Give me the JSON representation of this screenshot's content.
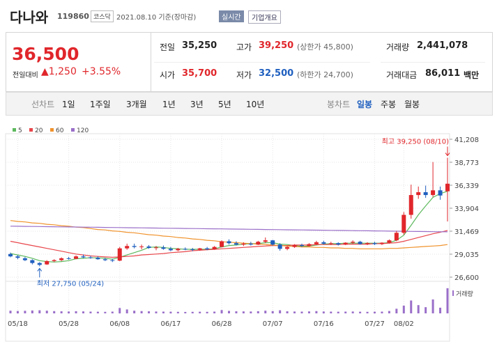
{
  "header": {
    "name": "다나와",
    "code": "119860",
    "market": "코스닥",
    "date": "2021.08.10 기준(장마감)",
    "realtime": "실시간",
    "company": "기업개요"
  },
  "quote": {
    "price": "36,500",
    "change_label": "전일대비",
    "change": "▲1,250",
    "rate": "+3.55%",
    "rows": [
      [
        {
          "label": "전일",
          "value": "35,250",
          "tone": "flat"
        },
        {
          "label": "고가",
          "value": "39,250",
          "note": "(상한가 45,800)",
          "tone": "up"
        },
        {
          "label": "거래량",
          "value": "2,441,078",
          "tone": "flat"
        }
      ],
      [
        {
          "label": "시가",
          "value": "35,700",
          "tone": "up"
        },
        {
          "label": "저가",
          "value": "32,500",
          "note": "(하한가 24,700)",
          "tone": "down"
        },
        {
          "label": "거래대금",
          "value": "86,011",
          "unit": "백만",
          "tone": "flat"
        }
      ]
    ]
  },
  "tabs": {
    "line_label": "선차트",
    "line": [
      "1일",
      "1주일",
      "3개월",
      "1년",
      "3년",
      "5년",
      "10년"
    ],
    "candle_label": "봉차트",
    "candle": [
      "일봉",
      "주봉",
      "월봉"
    ],
    "active": 0
  },
  "chart_data": {
    "type": "candlestick",
    "up_color": "#e0262b",
    "down_color": "#1f5fbf",
    "categories": [
      null,
      "05/18",
      null,
      null,
      null,
      null,
      null,
      null,
      "05/28",
      null,
      null,
      null,
      null,
      null,
      null,
      "06/08",
      null,
      null,
      null,
      null,
      null,
      null,
      "06/17",
      null,
      null,
      null,
      null,
      null,
      null,
      "06/28",
      null,
      null,
      null,
      null,
      null,
      null,
      "07/07",
      null,
      null,
      null,
      null,
      null,
      null,
      "07/16",
      null,
      null,
      null,
      null,
      null,
      null,
      "07/27",
      null,
      null,
      null,
      "08/02",
      null,
      null,
      null,
      null,
      null,
      null
    ],
    "ohlc": [
      [
        29050,
        29200,
        28700,
        28800
      ],
      [
        28800,
        28950,
        28500,
        28650
      ],
      [
        28600,
        28750,
        28300,
        28400
      ],
      [
        28400,
        28500,
        27950,
        28100
      ],
      [
        28100,
        28200,
        27750,
        27900
      ],
      [
        27950,
        28400,
        27900,
        28300
      ],
      [
        28300,
        28500,
        28200,
        28400
      ],
      [
        28400,
        28700,
        28300,
        28600
      ],
      [
        28600,
        28750,
        28450,
        28550
      ],
      [
        28550,
        28900,
        28500,
        28800
      ],
      [
        28800,
        29000,
        28600,
        28700
      ],
      [
        28700,
        28850,
        28550,
        28650
      ],
      [
        28650,
        28800,
        28450,
        28500
      ],
      [
        28500,
        28650,
        28300,
        28400
      ],
      [
        28400,
        28550,
        28200,
        28350
      ],
      [
        28350,
        29800,
        28300,
        29650
      ],
      [
        29650,
        30150,
        29500,
        29900
      ],
      [
        29900,
        30150,
        29650,
        29800
      ],
      [
        29800,
        30050,
        29550,
        29850
      ],
      [
        29850,
        30000,
        29600,
        29700
      ],
      [
        29700,
        29900,
        29450,
        29750
      ],
      [
        29750,
        29950,
        29500,
        29600
      ],
      [
        29600,
        29800,
        29350,
        29450
      ],
      [
        29450,
        29700,
        29350,
        29600
      ],
      [
        29600,
        29750,
        29450,
        29550
      ],
      [
        29550,
        29700,
        29350,
        29500
      ],
      [
        29500,
        29700,
        29400,
        29650
      ],
      [
        29650,
        29800,
        29450,
        29550
      ],
      [
        29550,
        29900,
        29500,
        29800
      ],
      [
        29800,
        30500,
        29750,
        30400
      ],
      [
        30400,
        30600,
        30050,
        30200
      ],
      [
        30200,
        30400,
        29950,
        30050
      ],
      [
        30050,
        30300,
        29900,
        30150
      ],
      [
        30150,
        30350,
        29950,
        30050
      ],
      [
        30050,
        30450,
        30000,
        30350
      ],
      [
        30350,
        30800,
        30200,
        30500
      ],
      [
        30500,
        30550,
        29950,
        30050
      ],
      [
        30050,
        30200,
        29400,
        29600
      ],
      [
        29600,
        29900,
        29450,
        29800
      ],
      [
        29800,
        30100,
        29700,
        30000
      ],
      [
        30000,
        30150,
        29800,
        29900
      ],
      [
        29900,
        30200,
        29850,
        30100
      ],
      [
        30100,
        30450,
        30000,
        30300
      ],
      [
        30300,
        30450,
        30050,
        30150
      ],
      [
        30150,
        30350,
        30000,
        30200
      ],
      [
        30200,
        30300,
        29950,
        30050
      ],
      [
        30050,
        30300,
        30000,
        30250
      ],
      [
        30250,
        30500,
        30100,
        30350
      ],
      [
        30350,
        30450,
        30050,
        30100
      ],
      [
        30100,
        30300,
        30000,
        30200
      ],
      [
        30200,
        30350,
        30000,
        30100
      ],
      [
        30100,
        30300,
        30000,
        30250
      ],
      [
        30250,
        30600,
        30150,
        30500
      ],
      [
        30500,
        31500,
        30400,
        31300
      ],
      [
        31300,
        33500,
        31100,
        33200
      ],
      [
        33200,
        36400,
        32800,
        35300
      ],
      [
        35300,
        36200,
        34900,
        35600
      ],
      [
        35600,
        36300,
        35000,
        35300
      ],
      [
        35300,
        38800,
        35100,
        35800
      ],
      [
        35800,
        36200,
        34800,
        35250
      ],
      [
        35700,
        39250,
        32500,
        36500
      ]
    ],
    "ylim": [
      26600,
      41208
    ],
    "yticks": [
      {
        "value": 41208,
        "label": "41,208"
      },
      {
        "value": 38773,
        "label": "38,773"
      },
      {
        "value": 36339,
        "label": "36,339"
      },
      {
        "value": 33904,
        "label": "33,904"
      },
      {
        "value": 31469,
        "label": "31,469"
      },
      {
        "value": 29035,
        "label": "29,035"
      },
      {
        "value": 26600,
        "label": "26,600"
      }
    ],
    "grid": true,
    "ma": [
      {
        "name": "5",
        "color": "#5cb85c",
        "values": [
          29100,
          28950,
          28800,
          28600,
          28350,
          28250,
          28200,
          28250,
          28350,
          28550,
          28600,
          28650,
          28650,
          28600,
          28500,
          28700,
          28950,
          29200,
          29450,
          29750,
          29800,
          29750,
          29650,
          29600,
          29550,
          29550,
          29550,
          29550,
          29600,
          29800,
          29950,
          30000,
          30100,
          30150,
          30150,
          30250,
          30250,
          30100,
          30050,
          29950,
          29850,
          29900,
          30000,
          30100,
          30150,
          30150,
          30200,
          30200,
          30200,
          30200,
          30200,
          30200,
          30250,
          30500,
          31050,
          32100,
          33200,
          34150,
          35050,
          35450,
          35700
        ]
      },
      {
        "name": "20",
        "color": "#e8464b",
        "values": [
          30400,
          30250,
          30100,
          29950,
          29800,
          29650,
          29500,
          29350,
          29200,
          29050,
          28950,
          28850,
          28800,
          28750,
          28700,
          28750,
          28800,
          28850,
          28950,
          29000,
          29050,
          29100,
          29200,
          29250,
          29300,
          29400,
          29450,
          29500,
          29550,
          29600,
          29650,
          29700,
          29750,
          29800,
          29850,
          29900,
          29950,
          29950,
          29950,
          30000,
          30000,
          30000,
          30050,
          30050,
          30050,
          30050,
          30100,
          30100,
          30100,
          30100,
          30150,
          30150,
          30200,
          30250,
          30400,
          30600,
          30800,
          31000,
          31200,
          31350,
          31550
        ]
      },
      {
        "name": "60",
        "color": "#f0922b",
        "values": [
          32600,
          32500,
          32450,
          32350,
          32300,
          32200,
          32150,
          32050,
          32000,
          31900,
          31850,
          31750,
          31650,
          31600,
          31500,
          31450,
          31350,
          31300,
          31200,
          31100,
          31050,
          30950,
          30900,
          30800,
          30750,
          30650,
          30600,
          30500,
          30450,
          30350,
          30300,
          30250,
          30200,
          30150,
          30100,
          30050,
          30000,
          29950,
          29900,
          29850,
          29800,
          29800,
          29750,
          29750,
          29700,
          29700,
          29650,
          29650,
          29600,
          29600,
          29600,
          29600,
          29650,
          29650,
          29700,
          29750,
          29800,
          29850,
          29900,
          29950,
          30050
        ]
      },
      {
        "name": "120",
        "color": "#9a6fc9",
        "values": [
          32000,
          31990,
          31980,
          31970,
          31960,
          31950,
          31940,
          31930,
          31920,
          31910,
          31900,
          31890,
          31880,
          31870,
          31860,
          31850,
          31840,
          31830,
          31820,
          31810,
          31800,
          31790,
          31780,
          31770,
          31760,
          31750,
          31740,
          31730,
          31720,
          31710,
          31700,
          31690,
          31680,
          31670,
          31660,
          31650,
          31640,
          31630,
          31620,
          31610,
          31600,
          31590,
          31580,
          31570,
          31560,
          31550,
          31540,
          31530,
          31520,
          31510,
          31500,
          31490,
          31480,
          31470,
          31460,
          31450,
          31440,
          31430,
          31420,
          31410,
          31400
        ]
      }
    ],
    "high_label": "최고 39,250 (08/10)",
    "low_label": "최저 27,750 (05/24)",
    "volume": {
      "name": "거래량",
      "color": "#9a6fc9",
      "ylim": [
        0,
        2500000
      ],
      "values": [
        260000,
        230000,
        250000,
        280000,
        300000,
        260000,
        220000,
        200000,
        180000,
        210000,
        190000,
        170000,
        160000,
        150000,
        170000,
        520000,
        380000,
        260000,
        220000,
        200000,
        180000,
        170000,
        160000,
        150000,
        140000,
        150000,
        160000,
        150000,
        170000,
        320000,
        240000,
        200000,
        190000,
        180000,
        210000,
        260000,
        220000,
        300000,
        200000,
        180000,
        170000,
        190000,
        220000,
        180000,
        170000,
        160000,
        170000,
        180000,
        160000,
        150000,
        160000,
        170000,
        230000,
        450000,
        750000,
        1250000,
        800000,
        600000,
        1350000,
        550000,
        2441078
      ]
    }
  }
}
